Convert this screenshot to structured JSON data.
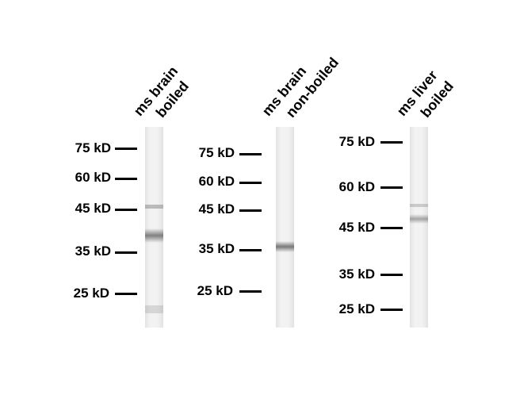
{
  "panels": [
    {
      "lane_label": [
        "ms brain",
        "boiled"
      ],
      "markers": [
        "75 kD",
        "60 kD",
        "45 kD",
        "35 kD",
        "25 kD"
      ]
    },
    {
      "lane_label": [
        "ms brain",
        "non-boiled"
      ],
      "markers": [
        "75 kD",
        "60 kD",
        "45 kD",
        "35 kD",
        "25 kD"
      ]
    },
    {
      "lane_label": [
        "ms liver",
        "boiled"
      ],
      "markers": [
        "75 kD",
        "60 kD",
        "45 kD",
        "35 kD",
        "25 kD"
      ]
    }
  ],
  "band_color": "#555555"
}
